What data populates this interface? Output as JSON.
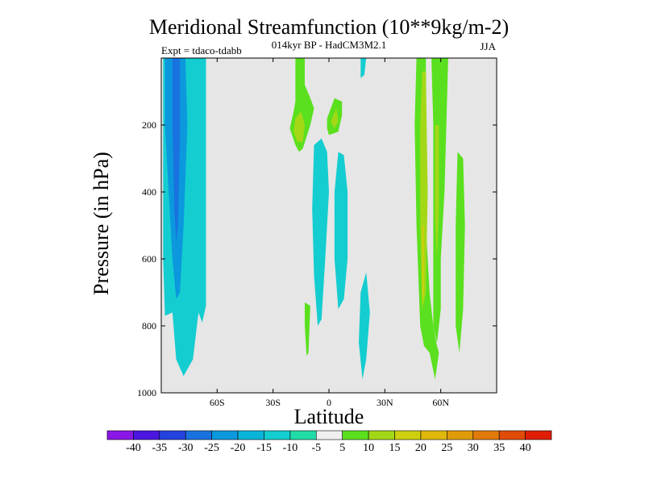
{
  "chart_data": {
    "type": "heatmap",
    "title": "Meridional Streamfunction (10**9kg/m-2)",
    "subtitle": "014kyr BP - HadCM3M2.1",
    "left_label": "Expt = tdaco-tdabb",
    "right_label": "JJA",
    "xlabel": "Latitude",
    "ylabel": "Pressure (in hPa)",
    "xlim": [
      -90,
      90
    ],
    "ylim": [
      0,
      1000
    ],
    "x_ticks": [
      {
        "value": -60,
        "label": "60S"
      },
      {
        "value": -30,
        "label": "30S"
      },
      {
        "value": 0,
        "label": "0"
      },
      {
        "value": 30,
        "label": "30N"
      },
      {
        "value": 60,
        "label": "60N"
      }
    ],
    "y_ticks": [
      {
        "value": 200,
        "label": "200"
      },
      {
        "value": 400,
        "label": "400"
      },
      {
        "value": 600,
        "label": "600"
      },
      {
        "value": 800,
        "label": "800"
      },
      {
        "value": 1000,
        "label": "1000"
      }
    ],
    "background_color": "#e6e6e6",
    "colorbar": {
      "labels": [
        "-40",
        "-35",
        "-30",
        "-25",
        "-20",
        "-15",
        "-10",
        "-5",
        "5",
        "10",
        "15",
        "20",
        "25",
        "30",
        "35",
        "40"
      ],
      "colors": [
        "#8a17e6",
        "#4a16e0",
        "#2442dd",
        "#1a72e0",
        "#0b98dd",
        "#08b5d9",
        "#14cdd0",
        "#22dca8",
        "#f0f0f0",
        "#5ae01e",
        "#a3d817",
        "#cdd00e",
        "#e0b80c",
        "#e09b0b",
        "#e07a0a",
        "#e04c08",
        "#e01e06"
      ]
    },
    "contour_regions": [
      {
        "name": "sh-negative-cell",
        "fill": "#14cdd0",
        "points": [
          [
            -89,
            0
          ],
          [
            -66,
            0
          ],
          [
            -66,
            740
          ],
          [
            -68,
            790
          ],
          [
            -70,
            760
          ],
          [
            -73,
            900
          ],
          [
            -78,
            950
          ],
          [
            -82,
            900
          ],
          [
            -84,
            760
          ],
          [
            -88,
            770
          ],
          [
            -89,
            600
          ]
        ]
      },
      {
        "name": "sh-negative-cell",
        "fill": "#0b98dd",
        "points": [
          [
            -88,
            0
          ],
          [
            -77,
            0
          ],
          [
            -76,
            200
          ],
          [
            -78,
            500
          ],
          [
            -80,
            700
          ],
          [
            -82,
            720
          ],
          [
            -84,
            600
          ],
          [
            -86,
            400
          ],
          [
            -88,
            200
          ]
        ]
      },
      {
        "name": "sh-negative-core",
        "fill": "#1a72e0",
        "points": [
          [
            -84,
            0
          ],
          [
            -80,
            0
          ],
          [
            -80,
            250
          ],
          [
            -81,
            500
          ],
          [
            -82,
            550
          ],
          [
            -83,
            450
          ],
          [
            -84,
            200
          ]
        ]
      },
      {
        "name": "subtropical-positive-upper",
        "fill": "#5ae01e",
        "points": [
          [
            -18,
            0
          ],
          [
            -13,
            0
          ],
          [
            -13,
            80
          ],
          [
            -10,
            120
          ],
          [
            -8,
            150
          ],
          [
            -10,
            200
          ],
          [
            -14,
            270
          ],
          [
            -16,
            280
          ],
          [
            -18,
            260
          ],
          [
            -21,
            210
          ],
          [
            -19,
            160
          ],
          [
            -18,
            130
          ]
        ]
      },
      {
        "name": "subtropical-positive-upper",
        "fill": "#a3d817",
        "points": [
          [
            -18,
            180
          ],
          [
            -15,
            160
          ],
          [
            -13,
            200
          ],
          [
            -14,
            250
          ],
          [
            -17,
            250
          ],
          [
            -19,
            220
          ]
        ]
      },
      {
        "name": "equatorial-positive-upper",
        "fill": "#5ae01e",
        "points": [
          [
            -1,
            180
          ],
          [
            3,
            120
          ],
          [
            7,
            130
          ],
          [
            7,
            170
          ],
          [
            5,
            220
          ],
          [
            0,
            230
          ],
          [
            -1,
            210
          ]
        ]
      },
      {
        "name": "equatorial-positive-upper",
        "fill": "#a3d817",
        "points": [
          [
            1,
            190
          ],
          [
            4,
            150
          ],
          [
            5,
            190
          ],
          [
            3,
            210
          ]
        ]
      },
      {
        "name": "sh-tropical-negative",
        "fill": "#14cdd0",
        "points": [
          [
            -8,
            260
          ],
          [
            -4,
            240
          ],
          [
            -1,
            280
          ],
          [
            0,
            400
          ],
          [
            -2,
            600
          ],
          [
            -4,
            780
          ],
          [
            -6,
            800
          ],
          [
            -8,
            650
          ],
          [
            -9,
            450
          ]
        ]
      },
      {
        "name": "equatorial-negative",
        "fill": "#14cdd0",
        "points": [
          [
            5,
            280
          ],
          [
            8,
            290
          ],
          [
            10,
            400
          ],
          [
            10,
            600
          ],
          [
            8,
            720
          ],
          [
            5,
            750
          ],
          [
            3,
            600
          ],
          [
            3,
            400
          ]
        ]
      },
      {
        "name": "nh-tropical-negative",
        "fill": "#14cdd0",
        "points": [
          [
            17,
            700
          ],
          [
            20,
            640
          ],
          [
            22,
            760
          ],
          [
            20,
            900
          ],
          [
            18,
            960
          ],
          [
            16,
            850
          ]
        ]
      },
      {
        "name": "nh-upper-negative",
        "fill": "#14cdd0",
        "points": [
          [
            17,
            0
          ],
          [
            20,
            0
          ],
          [
            19,
            50
          ],
          [
            17,
            60
          ]
        ]
      },
      {
        "name": "subtropical-positive-lower",
        "fill": "#5ae01e",
        "points": [
          [
            -13,
            730
          ],
          [
            -10,
            740
          ],
          [
            -11,
            880
          ],
          [
            -12,
            890
          ],
          [
            -13,
            800
          ]
        ]
      },
      {
        "name": "nh-positive-cell",
        "fill": "#5ae01e",
        "points": [
          [
            47,
            0
          ],
          [
            52,
            0
          ],
          [
            52,
            500
          ],
          [
            54,
            700
          ],
          [
            56,
            800
          ],
          [
            58,
            860
          ],
          [
            59,
            880
          ],
          [
            57,
            960
          ],
          [
            54,
            880
          ],
          [
            51,
            860
          ],
          [
            49,
            800
          ],
          [
            47,
            500
          ],
          [
            46,
            200
          ]
        ]
      },
      {
        "name": "nh-positive-cell",
        "fill": "#5ae01e",
        "points": [
          [
            55,
            0
          ],
          [
            64,
            0
          ],
          [
            63,
            200
          ],
          [
            62,
            400
          ],
          [
            60,
            600
          ],
          [
            60,
            750
          ],
          [
            58,
            850
          ],
          [
            56,
            800
          ],
          [
            56,
            500
          ],
          [
            56,
            200
          ]
        ]
      },
      {
        "name": "nh-positive-core",
        "fill": "#a3d817",
        "points": [
          [
            50,
            40
          ],
          [
            52,
            40
          ],
          [
            53,
            400
          ],
          [
            52,
            700
          ],
          [
            50,
            750
          ],
          [
            49,
            500
          ],
          [
            49,
            200
          ]
        ]
      },
      {
        "name": "nh-positive-core",
        "fill": "#a3d817",
        "points": [
          [
            57,
            200
          ],
          [
            59,
            200
          ],
          [
            59,
            450
          ],
          [
            58,
            600
          ],
          [
            57,
            480
          ]
        ]
      },
      {
        "name": "nh-positive-core",
        "fill": "#cdd00e",
        "points": [
          [
            50,
            500
          ],
          [
            51,
            500
          ],
          [
            51,
            700
          ],
          [
            50,
            730
          ]
        ]
      },
      {
        "name": "nh-outer-positive",
        "fill": "#5ae01e",
        "points": [
          [
            69,
            280
          ],
          [
            72,
            300
          ],
          [
            73,
            500
          ],
          [
            72,
            750
          ],
          [
            70,
            880
          ],
          [
            68,
            800
          ],
          [
            68,
            500
          ]
        ]
      }
    ]
  }
}
